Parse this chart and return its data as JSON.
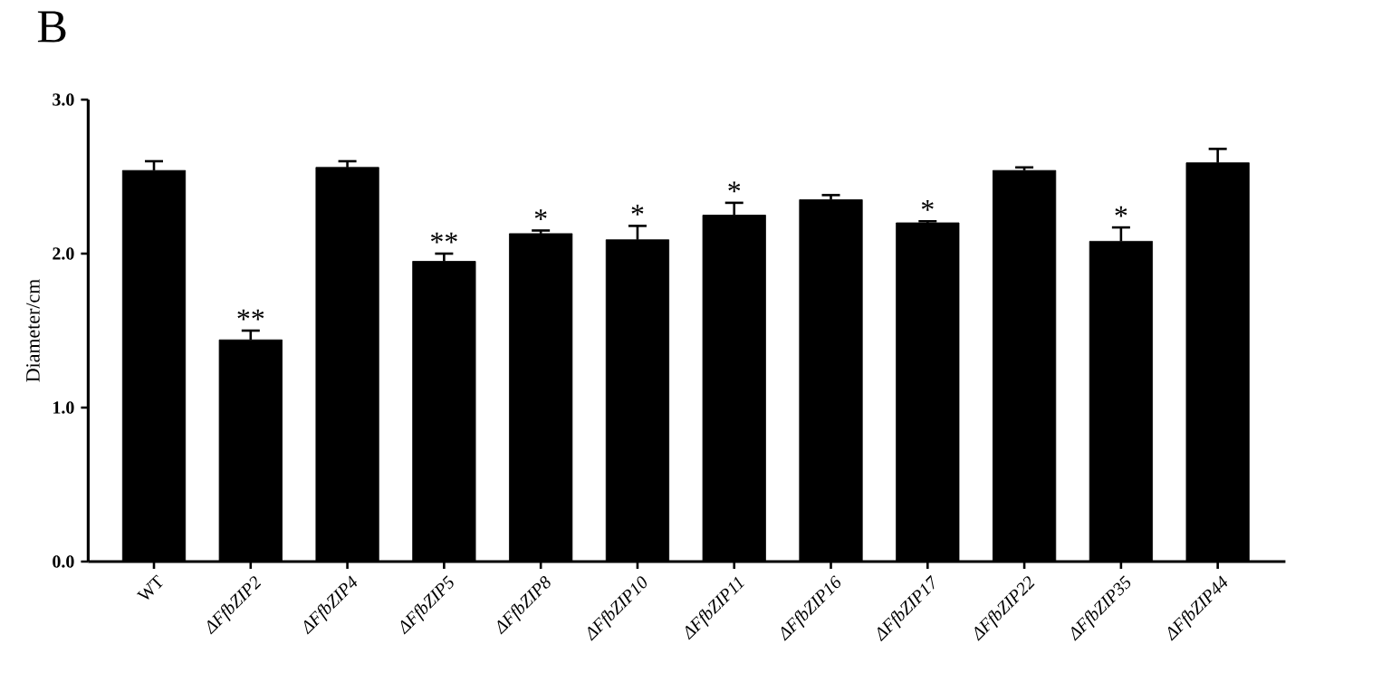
{
  "chart_data": {
    "type": "bar",
    "ylabel": "Diameter/cm",
    "categories": [
      "WT",
      "*ΔFfbZIP2*",
      "*ΔFfbZIP4*",
      "*ΔFfbZIP5*",
      "*ΔFfbZIP8*",
      "*ΔFfbZIP10*",
      "*ΔFfbZIP11*",
      "*ΔFfbZIP16*",
      "*ΔFfbZIP17*",
      "*ΔFfbZIP22*",
      "*ΔFfbZIP35*",
      "*ΔFfbZIP44*"
    ],
    "values": [
      2.54,
      1.44,
      2.56,
      1.95,
      2.13,
      2.09,
      2.25,
      2.35,
      2.2,
      2.54,
      2.08,
      2.59
    ],
    "errors": [
      0.06,
      0.06,
      0.04,
      0.05,
      0.02,
      0.09,
      0.08,
      0.03,
      0.01,
      0.02,
      0.09,
      0.09
    ],
    "color": "#000000",
    "ylim": [
      0,
      3
    ],
    "yticks": [
      {
        "value": 0,
        "label": "0.0"
      },
      {
        "value": 1,
        "label": "1.0"
      },
      {
        "value": 2,
        "label": "2.0"
      },
      {
        "value": 3,
        "label": "3.0"
      }
    ],
    "annotations": [
      "B",
      {
        "text": "**",
        "x": "*ΔFfbZIP2*",
        "y": 1.5
      },
      {
        "text": "**",
        "x": "*ΔFfbZIP5*",
        "y": 2.0
      },
      {
        "text": "*",
        "x": "*ΔFfbZIP8*",
        "y": 2.15
      },
      {
        "text": "*",
        "x": "*ΔFfbZIP10*",
        "y": 2.18
      },
      {
        "text": "*",
        "x": "*ΔFfbZIP11*",
        "y": 2.33
      },
      {
        "text": "*",
        "x": "*ΔFfbZIP17*",
        "y": 2.21
      },
      {
        "text": "*",
        "x": "*ΔFfbZIP35*",
        "y": 2.17
      }
    ]
  }
}
